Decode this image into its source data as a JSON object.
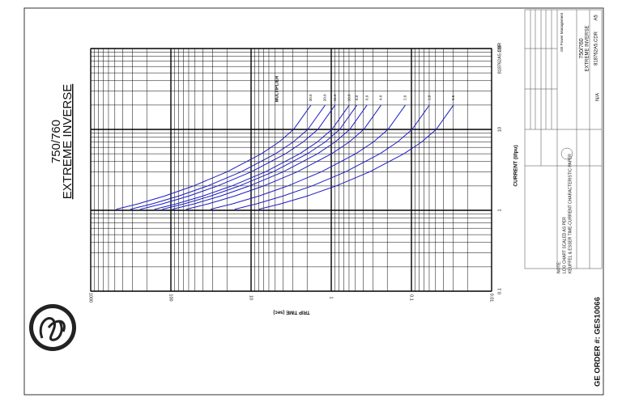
{
  "chart_data": {
    "type": "line",
    "title": "750/760",
    "subtitle": "EXTREME INVERSE",
    "x_label": "CURRENT (I/Ipu)",
    "y_label": "TRIP TIME (sec)",
    "legend_title": "MULTIPLIER",
    "xscale": "log",
    "yscale": "log",
    "grid": true,
    "xlim": [
      0.1,
      100
    ],
    "xticks": [
      0.1,
      1,
      10,
      100
    ],
    "ylim": [
      0.01,
      1000
    ],
    "yticks": [
      0.01,
      0.1,
      1,
      10,
      100,
      1000
    ],
    "x": [
      1.03,
      1.2,
      1.5,
      2,
      3,
      5,
      7,
      10,
      20
    ],
    "series": [
      {
        "name": "30.0",
        "color": "#1c1cc4",
        "values": [
          481,
          259,
          120,
          52.3,
          19.8,
          7.42,
          4.47,
          2.95,
          1.79
        ]
      },
      {
        "name": "20.0",
        "color": "#1c1cc4",
        "values": [
          321,
          172,
          80.0,
          34.9,
          13.2,
          4.95,
          2.98,
          1.96,
          1.19
        ]
      },
      {
        "name": "15.0",
        "color": "#1c1cc4",
        "values": [
          241,
          129,
          60.0,
          26.2,
          9.89,
          3.71,
          2.24,
          1.47,
          0.896
        ]
      },
      {
        "name": "10.0",
        "color": "#1c1cc4",
        "values": [
          160,
          86.2,
          40.0,
          17.4,
          6.59,
          2.47,
          1.49,
          0.982,
          0.597
        ]
      },
      {
        "name": "8.0",
        "color": "#1c1cc4",
        "values": [
          128,
          68.9,
          32.0,
          14.0,
          5.27,
          1.98,
          1.19,
          0.786,
          0.478
        ]
      },
      {
        "name": "6.0",
        "color": "#1c1cc4",
        "values": [
          96.2,
          51.7,
          24.0,
          10.5,
          3.95,
          1.48,
          0.894,
          0.589,
          0.358
        ]
      },
      {
        "name": "4.0",
        "color": "#1c1cc4",
        "values": [
          64.2,
          34.5,
          16.0,
          6.98,
          2.64,
          0.99,
          0.596,
          0.393,
          0.239
        ]
      },
      {
        "name": "2.0",
        "color": "#1c1cc4",
        "values": [
          32.1,
          17.2,
          8.0,
          3.49,
          1.32,
          0.495,
          0.298,
          0.196,
          0.119
        ]
      },
      {
        "name": "1.0",
        "color": "#1c1cc4",
        "values": [
          16.0,
          8.62,
          4.0,
          1.74,
          0.659,
          0.247,
          0.149,
          0.0982,
          0.0597
        ]
      },
      {
        "name": "0.5",
        "color": "#1c1cc4",
        "values": [
          8.02,
          4.31,
          2.0,
          0.872,
          0.33,
          0.124,
          0.0745,
          0.0491,
          0.0299
        ]
      }
    ],
    "file_code": "818762A5.CDR",
    "notes": [
      "NOTE:",
      "LOG CHART SCALED AS PER",
      "KEUFFEL & ESSER TIME-CURRENT CHARACTERISTIC PAPER"
    ],
    "order": "GE ORDER #: GES10066",
    "title_block": [
      "GE Power Management",
      "750/760",
      "EXTREME INVERSE",
      "818762A5.CDR",
      "A5",
      "N/A"
    ]
  }
}
